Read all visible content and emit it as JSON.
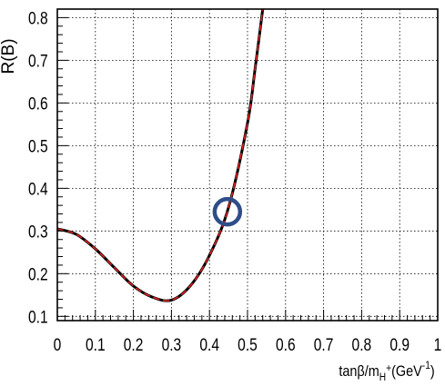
{
  "chart_data": {
    "type": "line",
    "title": "",
    "xlabel": "tanβ/m",
    "xlabel_sub": "H",
    "xlabel_sup": "+",
    "xlabel_unit": "(GeV",
    "xlabel_unit_sup": "-1",
    "xlabel_close": ")",
    "ylabel": "R(B)",
    "xlim": [
      0,
      1
    ],
    "ylim": [
      0.09,
      0.82
    ],
    "x_ticks": [
      "0",
      "0.1",
      "0.2",
      "0.3",
      "0.4",
      "0.5",
      "0.6",
      "0.7",
      "0.8",
      "0.9",
      "1"
    ],
    "y_ticks": [
      "0.1",
      "0.2",
      "0.3",
      "0.4",
      "0.5",
      "0.6",
      "0.7",
      "0.8"
    ],
    "grid": true,
    "series": [
      {
        "color": "#000000",
        "style": "solid",
        "x": [
          0,
          0.05,
          0.1,
          0.15,
          0.2,
          0.25,
          0.3,
          0.35,
          0.4,
          0.45,
          0.5,
          0.52,
          0.54
        ],
        "y": [
          0.305,
          0.292,
          0.258,
          0.214,
          0.171,
          0.145,
          0.138,
          0.172,
          0.243,
          0.355,
          0.553,
          0.681,
          0.82
        ]
      },
      {
        "color": "#dd2222",
        "style": "dashed",
        "x": [
          0,
          0.05,
          0.1,
          0.15,
          0.2,
          0.25,
          0.3,
          0.35,
          0.4,
          0.45,
          0.5,
          0.52,
          0.54
        ],
        "y": [
          0.305,
          0.292,
          0.258,
          0.214,
          0.171,
          0.145,
          0.138,
          0.172,
          0.243,
          0.355,
          0.553,
          0.681,
          0.82
        ]
      }
    ],
    "annotations": [
      {
        "type": "circle",
        "x": 0.447,
        "y": 0.345,
        "color": "#2d4e8a"
      }
    ]
  }
}
